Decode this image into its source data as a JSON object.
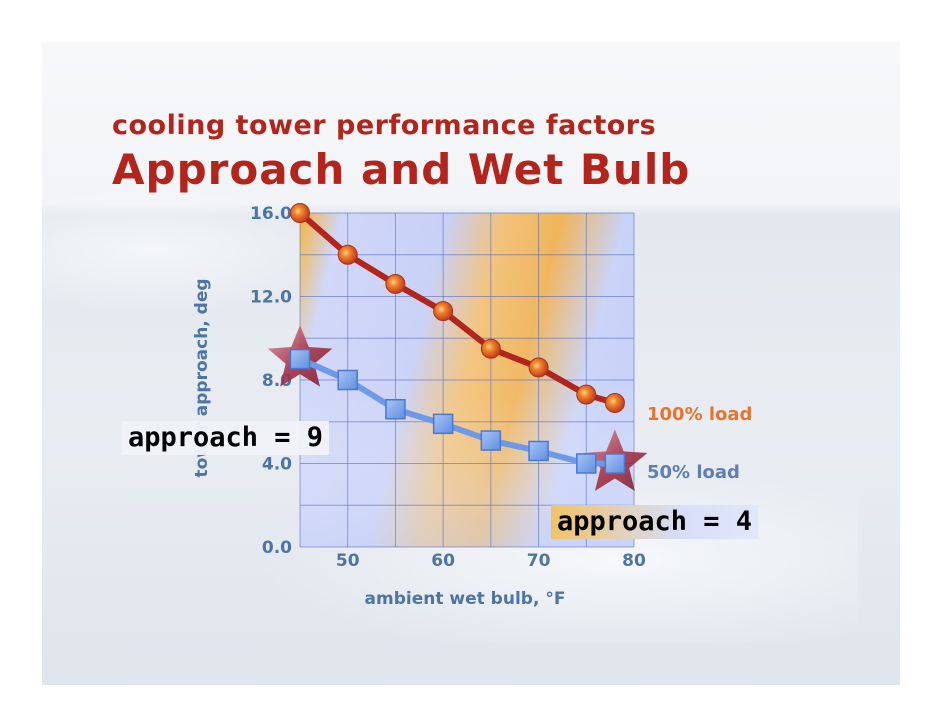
{
  "slide": {
    "subtitle": "cooling tower performance factors",
    "title": "Approach and Wet Bulb"
  },
  "callouts": {
    "left": "approach = 9",
    "right": "approach = 4"
  },
  "colors": {
    "title": "#b3241c",
    "axis_text": "#4d74a6",
    "series_100": "#b3241c",
    "series_50": "#6d9ae8",
    "legend_100": "#e8742c",
    "legend_50": "#5c7fb6",
    "grid": "#4a64c8"
  },
  "chart_data": {
    "type": "line",
    "title": "",
    "xlabel": "ambient wet bulb, °F",
    "ylabel": "tower approach, deg",
    "xlim": [
      45,
      80
    ],
    "ylim": [
      0,
      16
    ],
    "xticks": [
      50,
      60,
      70,
      80
    ],
    "yticks": [
      0.0,
      4.0,
      8.0,
      12.0,
      16.0
    ],
    "ytick_labels": [
      "0.0",
      "4.0",
      "8.0",
      "12.0",
      "16.0"
    ],
    "grid": true,
    "series": [
      {
        "name": "100% load",
        "marker": "circle",
        "x": [
          45,
          50,
          55,
          60,
          65,
          70,
          75,
          78
        ],
        "y": [
          16.0,
          14.0,
          12.6,
          11.3,
          9.5,
          8.6,
          7.3,
          6.9
        ]
      },
      {
        "name": "50% load",
        "marker": "square",
        "x": [
          45,
          50,
          55,
          60,
          65,
          70,
          75,
          78
        ],
        "y": [
          9.0,
          8.0,
          6.6,
          5.9,
          5.1,
          4.6,
          4.0,
          4.0
        ]
      }
    ],
    "highlights": [
      {
        "series": "50% load",
        "x": 45,
        "y": 9.0,
        "shape": "star"
      },
      {
        "series": "50% load",
        "x": 78,
        "y": 4.0,
        "shape": "star"
      }
    ]
  }
}
